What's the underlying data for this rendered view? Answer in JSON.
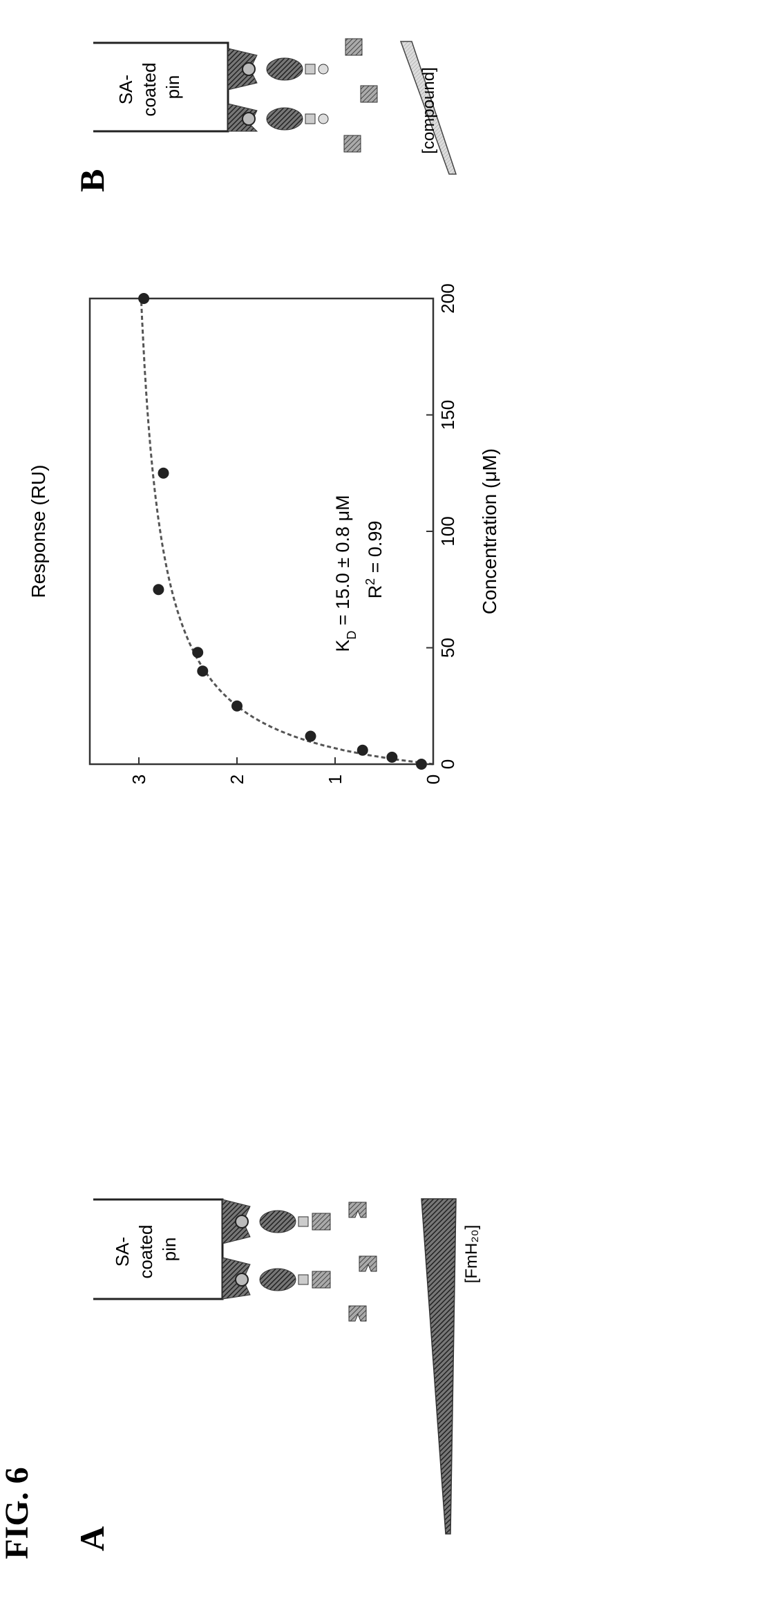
{
  "figure_label": "FIG. 6",
  "panel_a": {
    "label": "A",
    "pin_label_lines": [
      "SA-",
      "coated",
      "pin"
    ],
    "gradient_label": "[FmH₂₀]"
  },
  "panel_b": {
    "label": "B",
    "pin_label_lines": [
      "SA-",
      "coated",
      "pin"
    ],
    "gradient_label": "[compound]"
  },
  "annotation": {
    "kd": "15.0 ± 0.8 μM",
    "kd_prefix": "K",
    "kd_sub": "D",
    "r2_value": "0.99"
  },
  "chart_data": {
    "type": "scatter",
    "xlabel": "Concentration (μM)",
    "ylabel": "Response (RU)",
    "xlim": [
      0,
      200
    ],
    "ylim": [
      0,
      3.5
    ],
    "x_ticks": [
      0,
      50,
      100,
      150,
      200
    ],
    "y_ticks": [
      0,
      1,
      2,
      3
    ],
    "grid": false,
    "series": [
      {
        "x": [
          0,
          3,
          6,
          12,
          25,
          40,
          48,
          75,
          125,
          200
        ],
        "y": [
          0.12,
          0.42,
          0.72,
          1.25,
          2.0,
          2.35,
          2.4,
          2.8,
          2.75,
          2.95
        ]
      }
    ],
    "fit": {
      "type": "binding-curve",
      "bmax": 3.2,
      "kd": 15.0
    }
  }
}
